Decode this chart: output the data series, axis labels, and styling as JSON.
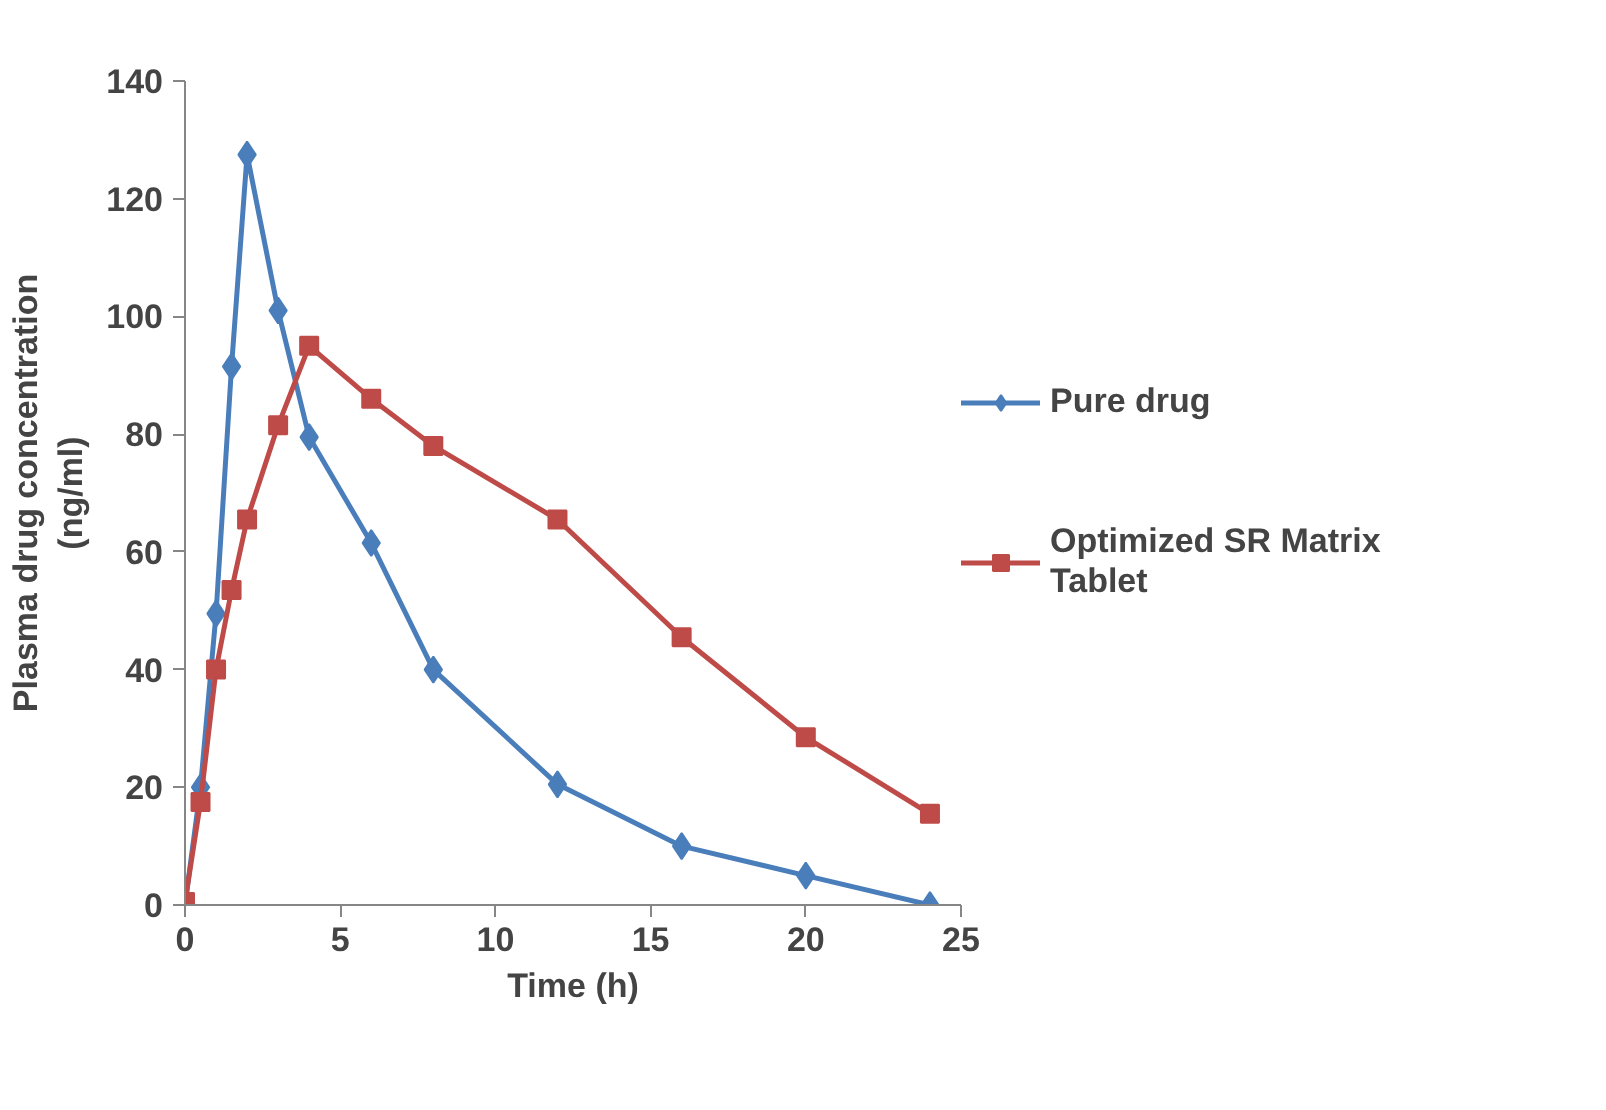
{
  "chart_data": {
    "type": "line",
    "xlabel": "Time (h)",
    "ylabel": "Plasma drug concentration (ng/ml)",
    "xlim": [
      0,
      25
    ],
    "xticks": [
      0,
      5,
      10,
      15,
      20,
      25
    ],
    "ylim": [
      0,
      140
    ],
    "yticks": [
      0,
      20,
      40,
      60,
      80,
      100,
      120,
      140
    ],
    "grid": false,
    "legend": "right",
    "line_style": "solid",
    "series": [
      {
        "name": "Pure drug",
        "color": "#4a7ebb",
        "marker": "diamond",
        "x": [
          0,
          0.5,
          1,
          1.5,
          2,
          3,
          4,
          6,
          8,
          12,
          16,
          20,
          24
        ],
        "values": [
          0,
          20,
          49.5,
          91.5,
          127.5,
          101,
          79.5,
          61.5,
          40,
          20.5,
          10,
          5,
          0
        ]
      },
      {
        "name": "Optimized SR Matrix Tablet",
        "color": "#be4b48",
        "marker": "square",
        "x": [
          0,
          0.5,
          1,
          1.5,
          2,
          3,
          4,
          6,
          8,
          12,
          16,
          20,
          24
        ],
        "values": [
          0.5,
          17.5,
          40,
          53.5,
          65.5,
          81.5,
          95,
          86,
          78,
          65.5,
          45.5,
          28.5,
          15.5
        ]
      }
    ]
  }
}
